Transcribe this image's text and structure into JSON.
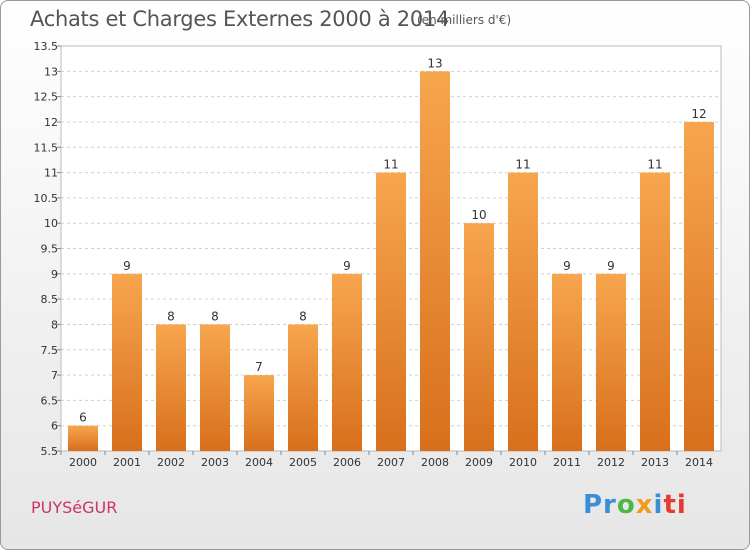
{
  "header": {
    "title": "Achats et Charges Externes 2000 à 2014",
    "subtitle": "(en milliers d'€)"
  },
  "footer": {
    "commune": "PUYSéGUR",
    "brand_parts": [
      "Pr",
      "o",
      "x",
      "i",
      "ti"
    ]
  },
  "colors": {
    "bar_top": "#f7a64e",
    "bar_bottom": "#d86f1c",
    "grid": "#d0d0d0",
    "commune": "#cc3366"
  },
  "chart_data": {
    "type": "bar",
    "title": "Achats et Charges Externes 2000 à 2014",
    "subtitle": "(en milliers d'€)",
    "categories": [
      "2000",
      "2001",
      "2002",
      "2003",
      "2004",
      "2005",
      "2006",
      "2007",
      "2008",
      "2009",
      "2010",
      "2011",
      "2012",
      "2013",
      "2014"
    ],
    "values": [
      6,
      9,
      8,
      8,
      7,
      8,
      9,
      11,
      13,
      10,
      11,
      9,
      9,
      11,
      12
    ],
    "labels": [
      "6",
      "9",
      "8",
      "8",
      "7",
      "8",
      "9",
      "11",
      "13",
      "10",
      "11",
      "9",
      "9",
      "11",
      "12"
    ],
    "yticks": [
      "5.5",
      "6",
      "6.5",
      "7",
      "7.5",
      "8",
      "8.5",
      "9",
      "9.5",
      "10",
      "10.5",
      "11",
      "11.5",
      "12",
      "12.5",
      "13",
      "13.5"
    ],
    "ylim": [
      5.5,
      13.5
    ],
    "grid": true,
    "xlabel": "",
    "ylabel": ""
  }
}
